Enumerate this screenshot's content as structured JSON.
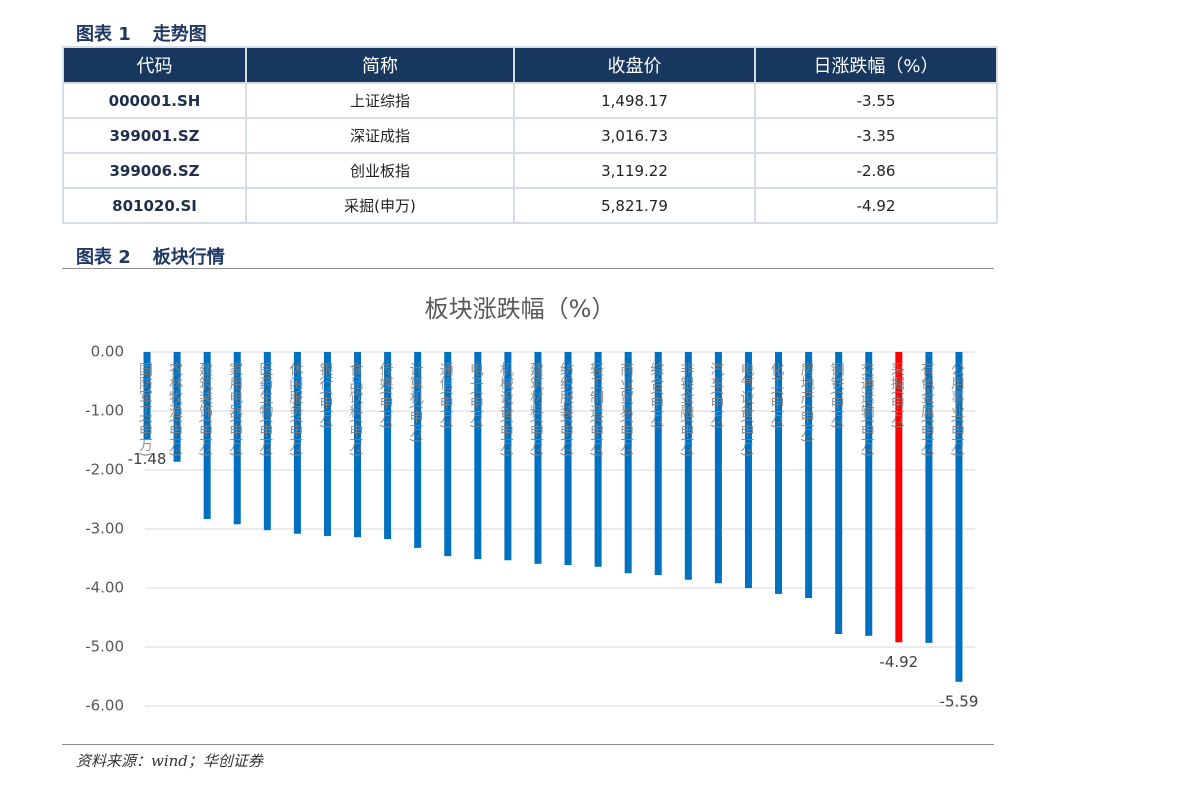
{
  "figure1": {
    "label": "图表 1",
    "name": "走势图",
    "table": {
      "header": [
        "代码",
        "简称",
        "收盘价",
        "日涨跌幅（%）"
      ],
      "rows": [
        [
          "000001.SH",
          "上证综指",
          "1,498.17",
          "-3.55"
        ],
        [
          "399001.SZ",
          "深证成指",
          "3,016.73",
          "-3.35"
        ],
        [
          "399006.SZ",
          "创业板指",
          "3,119.22",
          "-2.86"
        ],
        [
          "801020.SI",
          "采掘(申万)",
          "5,821.79",
          "-4.92"
        ]
      ]
    }
  },
  "figure2": {
    "label": "图表 2",
    "name": "板块行情"
  },
  "chart_data": {
    "type": "bar",
    "title": "板块涨跌幅（%）",
    "categories": [
      "国防军工(申万)",
      "农林牧渔(申万)",
      "建筑装饰(申万)",
      "家用电器(申万)",
      "医药生物(申万)",
      "休闲服务(申万)",
      "银行(申万)",
      "食品饮料(申万)",
      "传媒(申万)",
      "计算机(申万)",
      "通信(申万)",
      "电子(申万)",
      "机械设备(申万)",
      "建筑材料(申万)",
      "纺织服装(申万)",
      "轻工制造(申万)",
      "商业贸易(申万)",
      "综合(申万)",
      "非银金融(申万)",
      "汽车(申万)",
      "电气设备(申万)",
      "化工(申万)",
      "房地产(申万)",
      "钢铁(申万)",
      "交通运输(申万)",
      "采掘(申万)",
      "有色金属(申万)",
      "公用事业(申万)"
    ],
    "values": [
      -1.48,
      -1.86,
      -2.83,
      -2.92,
      -3.02,
      -3.08,
      -3.12,
      -3.14,
      -3.17,
      -3.32,
      -3.46,
      -3.51,
      -3.53,
      -3.59,
      -3.61,
      -3.64,
      -3.75,
      -3.78,
      -3.86,
      -3.92,
      -4.0,
      -4.1,
      -4.17,
      -4.78,
      -4.81,
      -4.92,
      -4.93,
      -5.59
    ],
    "colors": [
      "#0070c0",
      "#0070c0",
      "#0070c0",
      "#0070c0",
      "#0070c0",
      "#0070c0",
      "#0070c0",
      "#0070c0",
      "#0070c0",
      "#0070c0",
      "#0070c0",
      "#0070c0",
      "#0070c0",
      "#0070c0",
      "#0070c0",
      "#0070c0",
      "#0070c0",
      "#0070c0",
      "#0070c0",
      "#0070c0",
      "#0070c0",
      "#0070c0",
      "#0070c0",
      "#0070c0",
      "#0070c0",
      "#ff0000",
      "#0070c0",
      "#0070c0"
    ],
    "show_value_label": [
      true,
      false,
      false,
      false,
      false,
      false,
      false,
      false,
      false,
      false,
      false,
      false,
      false,
      false,
      false,
      false,
      false,
      false,
      false,
      false,
      false,
      false,
      false,
      false,
      false,
      true,
      false,
      true
    ],
    "ylim": [
      -6,
      0
    ],
    "yticks": [
      {
        "value": 0,
        "label": "0.00"
      },
      {
        "value": -1,
        "label": "-1.00"
      },
      {
        "value": -2,
        "label": "-2.00"
      },
      {
        "value": -3,
        "label": "-3.00"
      },
      {
        "value": -4,
        "label": "-4.00"
      },
      {
        "value": -5,
        "label": "-5.00"
      },
      {
        "value": -6,
        "label": "-6.00"
      }
    ],
    "grid": true
  },
  "source": "资料来源：wind；华创证券"
}
